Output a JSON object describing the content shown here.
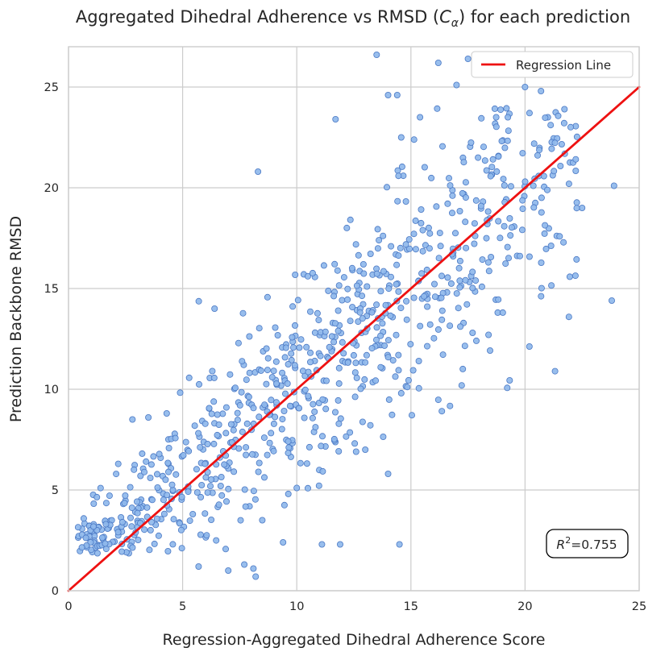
{
  "chart_data": {
    "type": "scatter",
    "title_prefix": "Aggregated Dihedral Adherence vs RMSD (",
    "title_symbol": "C",
    "title_subscript": "α",
    "title_suffix": ") for each prediction",
    "xlabel": "Regression-Aggregated Dihedral Adherence Score",
    "ylabel": "Prediction Backbone RMSD",
    "xlim": [
      0,
      25
    ],
    "ylim": [
      0,
      27
    ],
    "xticks": [
      "0",
      "5",
      "10",
      "15",
      "20",
      "25"
    ],
    "yticks": [
      "0",
      "5",
      "10",
      "15",
      "20",
      "25"
    ],
    "grid": true,
    "legend": {
      "placement": "top-right",
      "entries": [
        "Regression Line"
      ]
    },
    "regression": {
      "name": "Regression Line",
      "x": [
        0,
        25
      ],
      "y": [
        0,
        25
      ],
      "color": "#ee1111"
    },
    "annotation": {
      "symbol": "R",
      "superscript": "2",
      "value": "=0.755",
      "placement": "bottom-right"
    },
    "colors": {
      "points": "#8fb8ec",
      "point_edge": "#4a78c4",
      "grid": "#cccccc",
      "frame": "#cccccc"
    },
    "outliers": [
      [
        13.5,
        26.6
      ],
      [
        16.2,
        26.2
      ],
      [
        17.5,
        26.4
      ],
      [
        17.0,
        25.1
      ],
      [
        20.0,
        25.0
      ],
      [
        20.7,
        24.8
      ],
      [
        14.0,
        24.6
      ],
      [
        14.4,
        24.6
      ],
      [
        21.0,
        23.5
      ],
      [
        15.4,
        23.5
      ],
      [
        11.7,
        23.4
      ],
      [
        22.5,
        19.0
      ],
      [
        23.9,
        20.1
      ],
      [
        23.8,
        14.4
      ],
      [
        8.3,
        20.8
      ],
      [
        6.4,
        14.0
      ],
      [
        11.9,
        2.3
      ],
      [
        14.5,
        2.3
      ],
      [
        11.1,
        2.3
      ],
      [
        9.4,
        2.4
      ],
      [
        7.0,
        1.0
      ],
      [
        8.1,
        1.1
      ],
      [
        5.7,
        1.2
      ],
      [
        7.7,
        1.3
      ],
      [
        8.2,
        0.7
      ],
      [
        2.8,
        8.5
      ],
      [
        3.5,
        8.6
      ],
      [
        4.3,
        8.8
      ],
      [
        12.6,
        6.9
      ],
      [
        14.0,
        5.8
      ],
      [
        10.0,
        5.1
      ],
      [
        13.0,
        7.0
      ],
      [
        6.3,
        10.9
      ],
      [
        17.7,
        12.8
      ],
      [
        18.4,
        12.7
      ]
    ],
    "cluster": {
      "count": 860,
      "seed": 7,
      "x_range": [
        0.4,
        22.3
      ],
      "slope": 1.0,
      "intercept": 0.3,
      "noise_sd": 2.35
    }
  }
}
